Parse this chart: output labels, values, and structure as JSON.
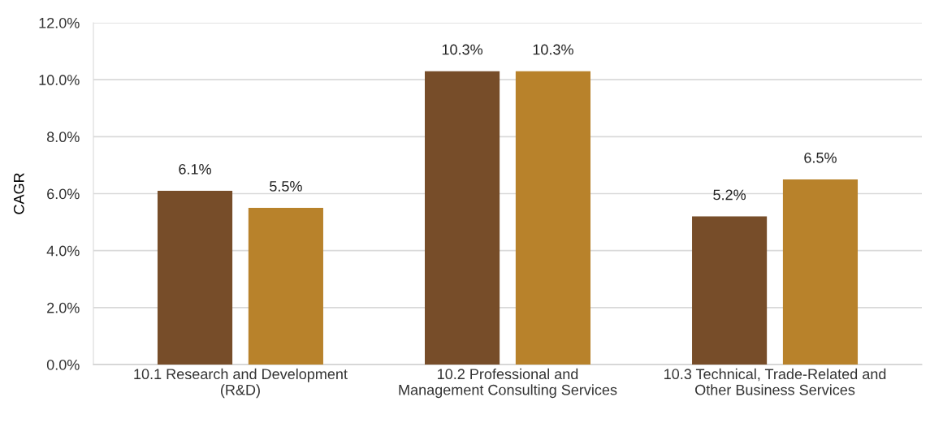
{
  "chart_data": {
    "type": "bar",
    "ylabel": "CAGR",
    "categories": [
      "10.1 Research and Development\n(R&D)",
      "10.2 Professional and\nManagement Consulting Services",
      "10.3 Technical, Trade-Related and\nOther Business Services"
    ],
    "series": [
      {
        "color": "#774d29",
        "values": [
          6.1,
          10.3,
          5.2
        ],
        "value_labels": [
          "6.1%",
          "10.3%",
          "5.2%"
        ]
      },
      {
        "color": "#b8822b",
        "values": [
          5.5,
          10.3,
          6.5
        ],
        "value_labels": [
          "5.5%",
          "10.3%",
          "6.5%"
        ]
      }
    ],
    "ylim": [
      0,
      12
    ],
    "yticks": [
      {
        "value": 0,
        "label": "0.0%"
      },
      {
        "value": 2,
        "label": "2.0%"
      },
      {
        "value": 4,
        "label": "4.0%"
      },
      {
        "value": 6,
        "label": "6.0%"
      },
      {
        "value": 8,
        "label": "8.0%"
      },
      {
        "value": 10,
        "label": "10.0%"
      },
      {
        "value": 12,
        "label": "12.0%"
      }
    ],
    "grid": "y"
  }
}
